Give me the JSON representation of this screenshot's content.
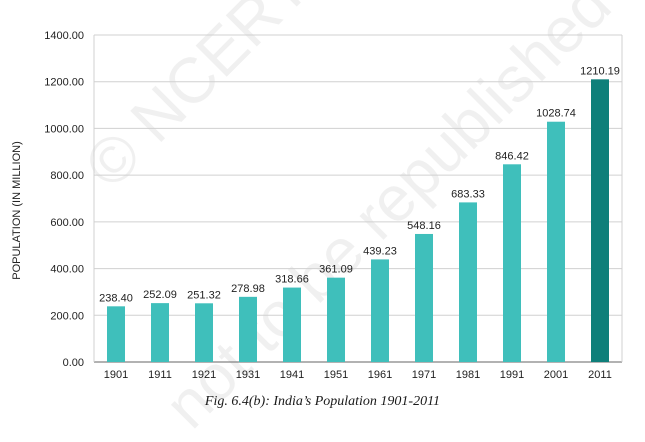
{
  "watermark": {
    "line1": "© NCERT",
    "line2": "not to be republished"
  },
  "caption": "Fig. 6.4(b): India’s Population 1901-2011",
  "colors": {
    "bar": "#3fbfbb",
    "bar_highlight": "#0e7f7a",
    "grid": "#d0d0d0",
    "axis": "#666666"
  },
  "chart_data": {
    "type": "bar",
    "title": "",
    "xlabel": "",
    "ylabel": "POPULATION (IN MILLION)",
    "categories": [
      "1901",
      "1911",
      "1921",
      "1931",
      "1941",
      "1951",
      "1961",
      "1971",
      "1981",
      "1991",
      "2001",
      "2011"
    ],
    "values": [
      238.4,
      252.09,
      251.32,
      278.98,
      318.66,
      361.09,
      439.23,
      548.16,
      683.33,
      846.42,
      1028.74,
      1210.19
    ],
    "value_labels": [
      "238.40",
      "252.09",
      "251.32",
      "278.98",
      "318.66",
      "361.09",
      "439.23",
      "548.16",
      "683.33",
      "846.42",
      "1028.74",
      "1210.19"
    ],
    "ylim": [
      0,
      1400
    ],
    "yticks": [
      0,
      200,
      400,
      600,
      800,
      1000,
      1200,
      1400
    ],
    "ytick_labels": [
      "0.00",
      "200.00",
      "400.00",
      "600.00",
      "800.00",
      "1000.00",
      "1200.00",
      "1400.00"
    ],
    "highlight_category": "2011",
    "grid": true,
    "legend": "none"
  }
}
